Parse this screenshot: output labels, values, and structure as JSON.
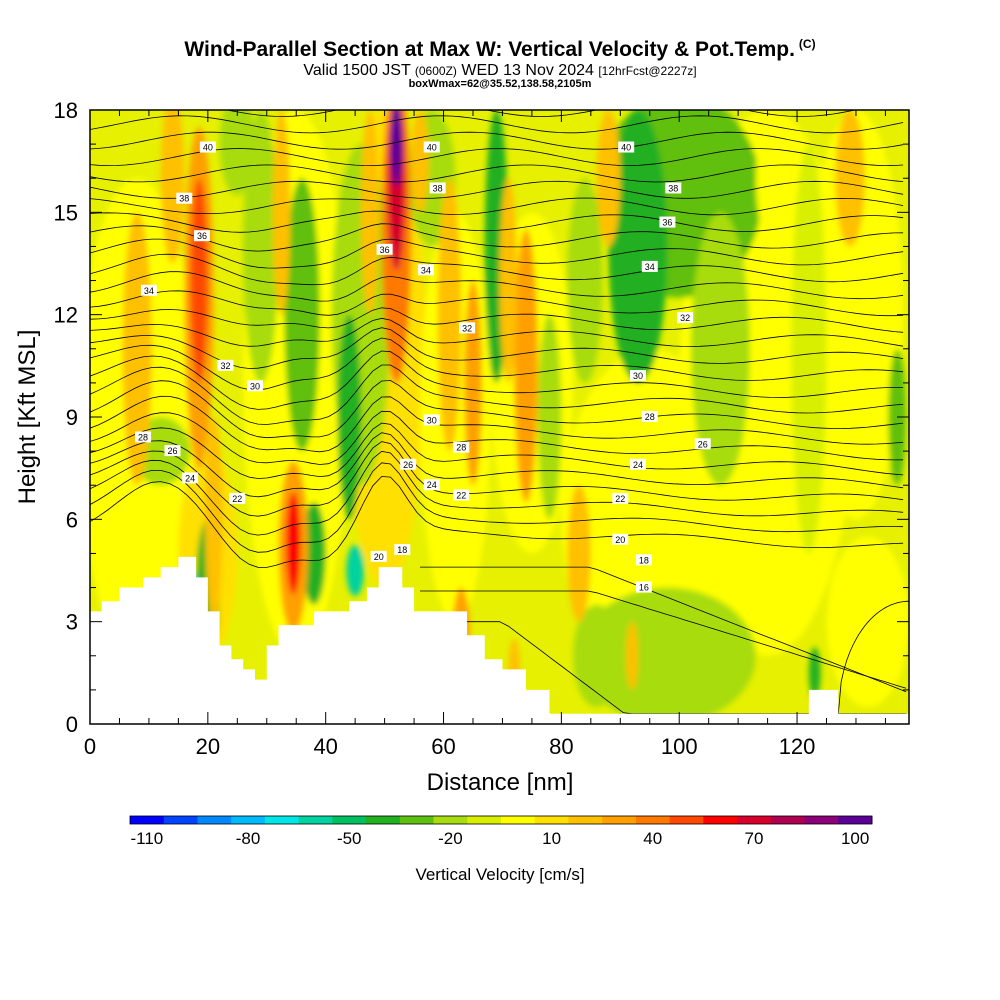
{
  "title": {
    "main": "Wind-Parallel Section at Max W: Vertical Velocity & Pot.Temp.",
    "tag": "(C)",
    "valid_prefix": "Valid 1500 JST",
    "valid_utc": "(0600Z)",
    "valid_date": "WED 13 Nov 2024",
    "forecast": "[12hrFcst@2227z]",
    "boxwmax": "boxWmax=62@35.52,138.58,2105m"
  },
  "chart_data": {
    "type": "heatmap",
    "xlabel": "Distance [nm]",
    "ylabel": "Height [Kft MSL]",
    "xlim": [
      0,
      139
    ],
    "ylim": [
      0,
      18
    ],
    "x_ticks": [
      "0",
      "20",
      "40",
      "60",
      "80",
      "100",
      "120"
    ],
    "y_ticks": [
      "0",
      "3",
      "6",
      "9",
      "12",
      "15",
      "18"
    ],
    "colorbar": {
      "title": "Vertical Velocity [cm/s]",
      "ticks": [
        "-110",
        "-80",
        "-50",
        "-20",
        "10",
        "40",
        "70",
        "100"
      ],
      "colors": [
        "#0000ff",
        "#0044ff",
        "#0088ff",
        "#00bbff",
        "#00e5e5",
        "#00d2a0",
        "#00c060",
        "#20b020",
        "#60c010",
        "#a8dc10",
        "#d8f000",
        "#ffff00",
        "#ffe000",
        "#ffc000",
        "#ffa000",
        "#ff7800",
        "#ff4800",
        "#ff0000",
        "#d8002a",
        "#b00050",
        "#8c0078",
        "#5a0096"
      ]
    },
    "terrain_kft": [
      [
        0,
        3.3
      ],
      [
        2,
        3.6
      ],
      [
        5,
        4.0
      ],
      [
        9,
        4.3
      ],
      [
        12,
        4.6
      ],
      [
        15,
        4.9
      ],
      [
        17,
        4.9
      ],
      [
        18,
        4.3
      ],
      [
        20,
        3.3
      ],
      [
        22,
        2.3
      ],
      [
        24,
        1.9
      ],
      [
        26,
        1.6
      ],
      [
        28,
        1.3
      ],
      [
        30,
        2.3
      ],
      [
        32,
        2.9
      ],
      [
        35,
        2.9
      ],
      [
        38,
        3.3
      ],
      [
        42,
        3.3
      ],
      [
        44,
        3.6
      ],
      [
        47,
        4.0
      ],
      [
        49,
        4.6
      ],
      [
        52,
        4.6
      ],
      [
        53,
        4.0
      ],
      [
        55,
        3.3
      ],
      [
        60,
        3.3
      ],
      [
        64,
        2.6
      ],
      [
        67,
        1.9
      ],
      [
        70,
        1.6
      ],
      [
        74,
        1.0
      ],
      [
        78,
        0.3
      ],
      [
        90,
        0.3
      ],
      [
        120,
        0.3
      ],
      [
        122,
        1.0
      ],
      [
        124,
        1.0
      ],
      [
        127,
        0.3
      ],
      [
        139,
        0.3
      ]
    ],
    "theta_labels": [
      {
        "text": "40",
        "x": 20,
        "y": 16.9
      },
      {
        "text": "40",
        "x": 58,
        "y": 16.9
      },
      {
        "text": "40",
        "x": 91,
        "y": 16.9
      },
      {
        "text": "38",
        "x": 16,
        "y": 15.4
      },
      {
        "text": "38",
        "x": 59,
        "y": 15.7
      },
      {
        "text": "38",
        "x": 99,
        "y": 15.7
      },
      {
        "text": "36",
        "x": 19,
        "y": 14.3
      },
      {
        "text": "36",
        "x": 50,
        "y": 13.9
      },
      {
        "text": "36",
        "x": 98,
        "y": 14.7
      },
      {
        "text": "34",
        "x": 10,
        "y": 12.7
      },
      {
        "text": "34",
        "x": 57,
        "y": 13.3
      },
      {
        "text": "34",
        "x": 95,
        "y": 13.4
      },
      {
        "text": "32",
        "x": 23,
        "y": 10.5
      },
      {
        "text": "32",
        "x": 64,
        "y": 11.6
      },
      {
        "text": "32",
        "x": 101,
        "y": 11.9
      },
      {
        "text": "30",
        "x": 28,
        "y": 9.9
      },
      {
        "text": "30",
        "x": 58,
        "y": 8.9
      },
      {
        "text": "30",
        "x": 93,
        "y": 10.2
      },
      {
        "text": "28",
        "x": 9,
        "y": 8.4
      },
      {
        "text": "28",
        "x": 63,
        "y": 8.1
      },
      {
        "text": "28",
        "x": 95,
        "y": 9.0
      },
      {
        "text": "26",
        "x": 14,
        "y": 8.0
      },
      {
        "text": "26",
        "x": 54,
        "y": 7.6
      },
      {
        "text": "26",
        "x": 104,
        "y": 8.2
      },
      {
        "text": "24",
        "x": 17,
        "y": 7.2
      },
      {
        "text": "24",
        "x": 58,
        "y": 7.0
      },
      {
        "text": "24",
        "x": 93,
        "y": 7.6
      },
      {
        "text": "22",
        "x": 25,
        "y": 6.6
      },
      {
        "text": "22",
        "x": 63,
        "y": 6.7
      },
      {
        "text": "22",
        "x": 90,
        "y": 6.6
      },
      {
        "text": "20",
        "x": 49,
        "y": 4.9
      },
      {
        "text": "20",
        "x": 90,
        "y": 5.4
      },
      {
        "text": "18",
        "x": 53,
        "y": 5.1
      },
      {
        "text": "18",
        "x": 94,
        "y": 4.8
      },
      {
        "text": "16",
        "x": 94,
        "y": 4.0
      }
    ]
  }
}
